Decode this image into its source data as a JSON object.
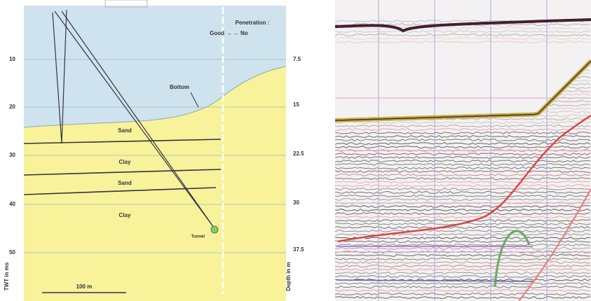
{
  "left_panel": {
    "left_axis": {
      "title": "TWT in ms",
      "ticks": [
        "10",
        "20",
        "30",
        "40",
        "50"
      ]
    },
    "right_axis": {
      "title": "Depth in m",
      "ticks": [
        "7.5",
        "15",
        "22.5",
        "30",
        "37.5"
      ]
    },
    "penetration": {
      "title": "Penetration :",
      "good": "Good",
      "no": "No"
    },
    "labels": {
      "bottom": "Bottom",
      "layers": [
        "Sand",
        "Clay",
        "Sand",
        "Clay"
      ],
      "tunnel": "Tunnel",
      "scale": "100 m"
    }
  }
}
